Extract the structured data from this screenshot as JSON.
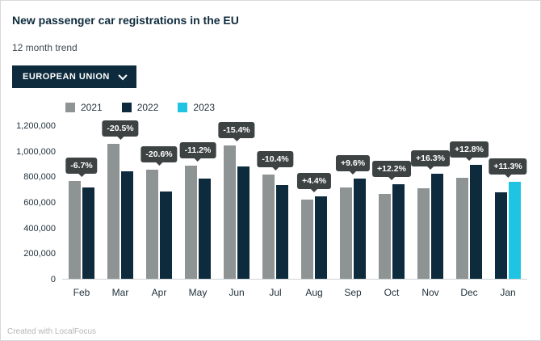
{
  "header": {
    "title": "New passenger car registrations in the EU",
    "subtitle": "12 month trend"
  },
  "dropdown": {
    "label": "EUROPEAN UNION"
  },
  "legend": {
    "items": [
      {
        "label": "2021",
        "color": "#8e9494"
      },
      {
        "label": "2022",
        "color": "#0e2b3d"
      },
      {
        "label": "2023",
        "color": "#1fc4e3"
      }
    ]
  },
  "footer": {
    "credit": "Created with LocalFocus"
  },
  "chart_data": {
    "type": "bar",
    "title": "New passenger car registrations in the EU",
    "subtitle": "12 month trend",
    "ylabel": "",
    "xlabel": "",
    "ylim": [
      0,
      1200000
    ],
    "grid": false,
    "legend_position": "top",
    "yticks": [
      {
        "v": 1200000,
        "label": "1,200,000"
      },
      {
        "v": 1000000,
        "label": "1,000,000"
      },
      {
        "v": 800000,
        "label": "800,000"
      },
      {
        "v": 600000,
        "label": "600,000"
      },
      {
        "v": 400000,
        "label": "400,000"
      },
      {
        "v": 200000,
        "label": "200,000"
      },
      {
        "v": 0,
        "label": "0"
      }
    ],
    "categories": [
      "Feb",
      "Mar",
      "Apr",
      "May",
      "Jun",
      "Jul",
      "Aug",
      "Sep",
      "Oct",
      "Nov",
      "Dec",
      "Jan"
    ],
    "series_colors": {
      "2021": "#8e9494",
      "2022": "#0e2b3d",
      "2023": "#1fc4e3"
    },
    "groups": [
      {
        "month": "Feb",
        "label": "-6.7%",
        "bars": [
          {
            "series": "2021",
            "value": 770000
          },
          {
            "series": "2022",
            "value": 720000
          }
        ]
      },
      {
        "month": "Mar",
        "label": "-20.5%",
        "bars": [
          {
            "series": "2021",
            "value": 1060000
          },
          {
            "series": "2022",
            "value": 845000
          }
        ]
      },
      {
        "month": "Apr",
        "label": "-20.6%",
        "bars": [
          {
            "series": "2021",
            "value": 860000
          },
          {
            "series": "2022",
            "value": 685000
          }
        ]
      },
      {
        "month": "May",
        "label": "-11.2%",
        "bars": [
          {
            "series": "2021",
            "value": 890000
          },
          {
            "series": "2022",
            "value": 790000
          }
        ]
      },
      {
        "month": "Jun",
        "label": "-15.4%",
        "bars": [
          {
            "series": "2021",
            "value": 1045000
          },
          {
            "series": "2022",
            "value": 885000
          }
        ]
      },
      {
        "month": "Jul",
        "label": "-10.4%",
        "bars": [
          {
            "series": "2021",
            "value": 820000
          },
          {
            "series": "2022",
            "value": 735000
          }
        ]
      },
      {
        "month": "Aug",
        "label": "+4.4%",
        "bars": [
          {
            "series": "2021",
            "value": 620000
          },
          {
            "series": "2022",
            "value": 650000
          }
        ]
      },
      {
        "month": "Sep",
        "label": "+9.6%",
        "bars": [
          {
            "series": "2021",
            "value": 720000
          },
          {
            "series": "2022",
            "value": 790000
          }
        ]
      },
      {
        "month": "Oct",
        "label": "+12.2%",
        "bars": [
          {
            "series": "2021",
            "value": 665000
          },
          {
            "series": "2022",
            "value": 745000
          }
        ]
      },
      {
        "month": "Nov",
        "label": "+16.3%",
        "bars": [
          {
            "series": "2021",
            "value": 710000
          },
          {
            "series": "2022",
            "value": 825000
          }
        ]
      },
      {
        "month": "Dec",
        "label": "+12.8%",
        "bars": [
          {
            "series": "2021",
            "value": 795000
          },
          {
            "series": "2022",
            "value": 895000
          }
        ]
      },
      {
        "month": "Jan",
        "label": "+11.3%",
        "bars": [
          {
            "series": "2022",
            "value": 680000
          },
          {
            "series": "2023",
            "value": 760000
          }
        ]
      }
    ]
  }
}
